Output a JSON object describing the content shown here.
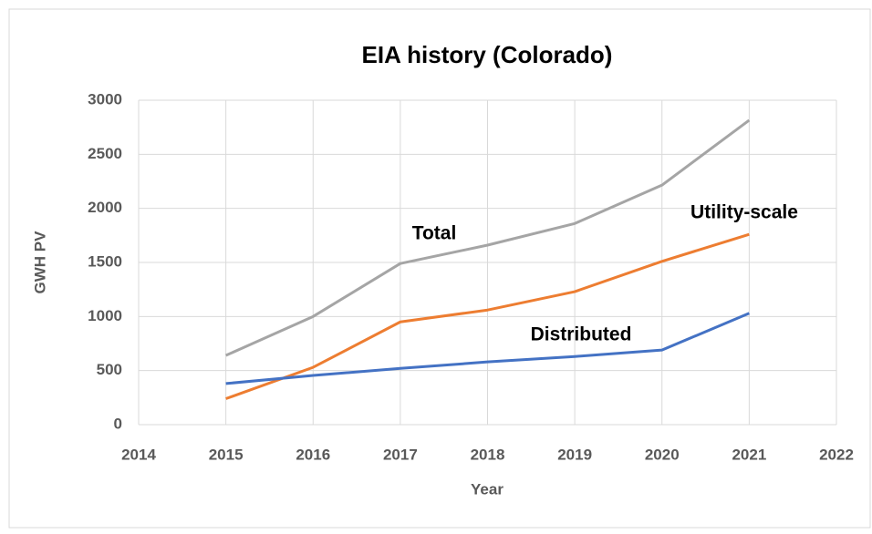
{
  "chart_data": {
    "type": "line",
    "title": "EIA history (Colorado)",
    "x_label": "Year",
    "y_label": "GWH PV",
    "x": [
      2015,
      2016,
      2017,
      2018,
      2019,
      2020,
      2021
    ],
    "series": [
      {
        "name": "Total",
        "color": "#a5a5a5",
        "values": [
          640,
          1000,
          1490,
          1660,
          1860,
          2215,
          2815
        ]
      },
      {
        "name": "Utility-scale",
        "color": "#ed7d31",
        "values": [
          240,
          530,
          950,
          1060,
          1230,
          1510,
          1760
        ]
      },
      {
        "name": "Distributed",
        "color": "#4472c4",
        "values": [
          380,
          455,
          520,
          580,
          630,
          690,
          1030
        ]
      }
    ],
    "xlim": [
      2014,
      2022
    ],
    "xticks": [
      2014,
      2015,
      2016,
      2017,
      2018,
      2019,
      2020,
      2021,
      2022
    ],
    "ylim": [
      0,
      3000
    ],
    "yticks": [
      0,
      500,
      1000,
      1500,
      2000,
      2500,
      3000
    ],
    "grid": true
  }
}
